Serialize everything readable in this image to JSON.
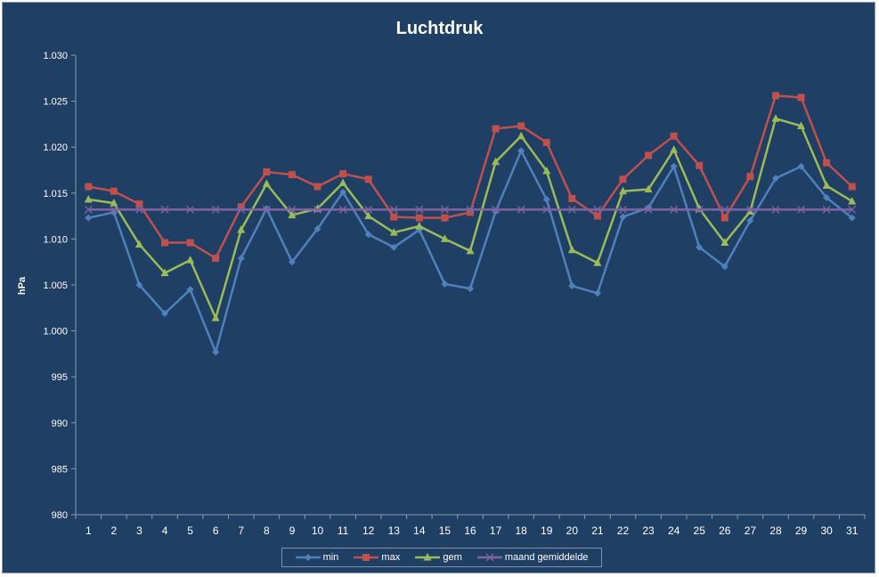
{
  "chart_data": {
    "type": "line",
    "title": "Luchtdruk",
    "ylabel": "hPa",
    "xlabel": "",
    "ylim": [
      980,
      1030
    ],
    "y_ticks": [
      "980",
      "985",
      "990",
      "995",
      "1.000",
      "1.005",
      "1.010",
      "1.015",
      "1.020",
      "1.025",
      "1.030"
    ],
    "y_tick_values": [
      980,
      985,
      990,
      995,
      1000,
      1005,
      1010,
      1015,
      1020,
      1025,
      1030
    ],
    "grid": false,
    "legend_position": "bottom",
    "categories": [
      "1",
      "2",
      "3",
      "4",
      "5",
      "6",
      "7",
      "8",
      "9",
      "10",
      "11",
      "12",
      "13",
      "14",
      "15",
      "16",
      "17",
      "18",
      "19",
      "20",
      "21",
      "22",
      "23",
      "24",
      "25",
      "26",
      "27",
      "28",
      "29",
      "30",
      "31"
    ],
    "series": [
      {
        "name": "min",
        "color": "#4f81bd",
        "marker": "diamond",
        "values": [
          1012.3,
          1012.9,
          1005.0,
          1001.9,
          1004.5,
          997.7,
          1007.9,
          1013.3,
          1007.5,
          1011.1,
          1015.1,
          1010.5,
          1009.1,
          1011.0,
          1005.1,
          1004.6,
          1013.0,
          1019.6,
          1014.3,
          1004.9,
          1004.1,
          1012.4,
          1013.4,
          1017.9,
          1009.1,
          1007.0,
          1012.0,
          1016.6,
          1017.9,
          1014.5,
          1012.3
        ]
      },
      {
        "name": "max",
        "color": "#c0504d",
        "marker": "square",
        "values": [
          1015.7,
          1015.2,
          1013.8,
          1009.6,
          1009.6,
          1007.9,
          1013.5,
          1017.3,
          1017.0,
          1015.7,
          1017.1,
          1016.5,
          1012.4,
          1012.3,
          1012.3,
          1012.9,
          1022.0,
          1022.3,
          1020.5,
          1014.4,
          1012.5,
          1016.5,
          1019.1,
          1021.2,
          1018.0,
          1012.3,
          1016.8,
          1025.6,
          1025.4,
          1018.3,
          1015.7
        ]
      },
      {
        "name": "gem",
        "color": "#9bbb59",
        "marker": "triangle",
        "values": [
          1014.3,
          1013.9,
          1009.4,
          1006.3,
          1007.7,
          1001.4,
          1011.0,
          1016.0,
          1012.6,
          1013.3,
          1016.1,
          1012.5,
          1010.7,
          1011.4,
          1010.0,
          1008.7,
          1018.4,
          1021.2,
          1017.4,
          1008.8,
          1007.4,
          1015.2,
          1015.4,
          1019.7,
          1013.3,
          1009.6,
          1013.0,
          1023.1,
          1022.3,
          1015.8,
          1014.1
        ]
      },
      {
        "name": "maand gemiddelde",
        "color": "#8064a2",
        "marker": "x",
        "values": [
          1013.2,
          1013.2,
          1013.2,
          1013.2,
          1013.2,
          1013.2,
          1013.2,
          1013.2,
          1013.2,
          1013.2,
          1013.2,
          1013.2,
          1013.2,
          1013.2,
          1013.2,
          1013.2,
          1013.2,
          1013.2,
          1013.2,
          1013.2,
          1013.2,
          1013.2,
          1013.2,
          1013.2,
          1013.2,
          1013.2,
          1013.2,
          1013.2,
          1013.2,
          1013.2,
          1013.2
        ]
      }
    ]
  }
}
